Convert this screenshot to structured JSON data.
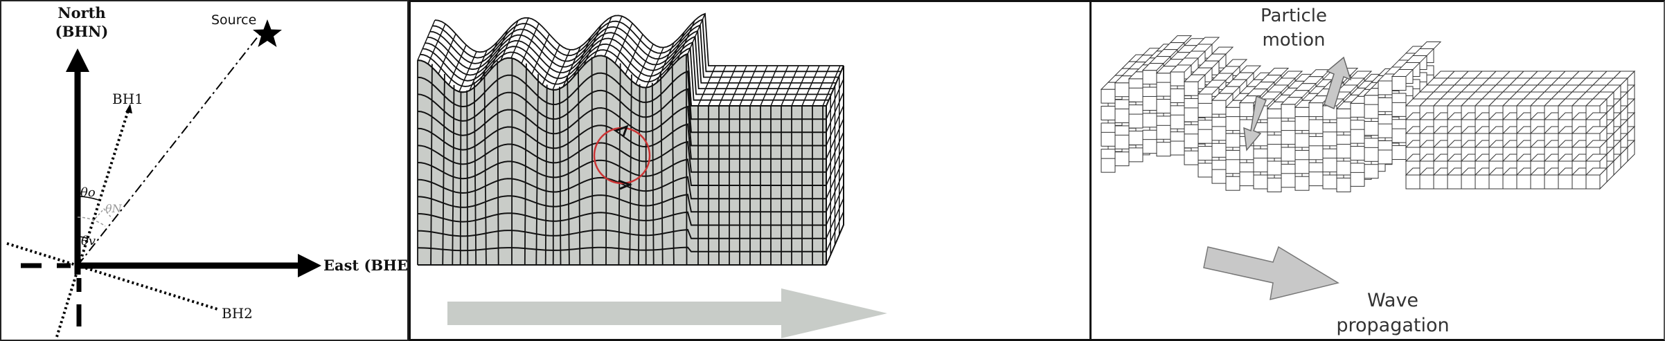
{
  "panel_orientation": {
    "north_label_line1": "North",
    "north_label_line2": "(BHN)",
    "east_label": "East (BHE)",
    "source_label": "Source",
    "bh1_label": "BH1",
    "bh2_label": "BH2",
    "theta_o": "θo",
    "theta_n": "θN",
    "theta_v": "θv"
  },
  "panel_wave_grid": {
    "arrow_color": "#c8ccc8",
    "fill_color": "#c9ccc8",
    "circle_color": "#cc3333"
  },
  "panel_particles": {
    "particle_label_line1": "Particle",
    "particle_label_line2": "motion",
    "wave_label_line1": "Wave",
    "wave_label_line2": "propagation",
    "arrow_color": "#c8c8c8"
  }
}
